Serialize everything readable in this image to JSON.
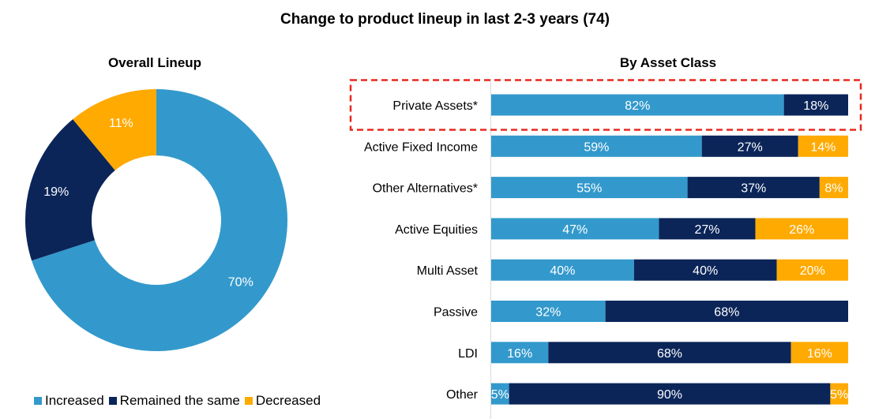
{
  "title": "Change to product lineup in last 2-3 years (74)",
  "colors": {
    "increased": "#3399CC",
    "same": "#0B2559",
    "decreased": "#FFAA00",
    "highlight": "#E8281E"
  },
  "chart_data": [
    {
      "type": "pie",
      "title": "Overall Lineup",
      "donut": true,
      "slices": [
        {
          "name": "Increased",
          "value": 70,
          "label": "70%"
        },
        {
          "name": "Remained the same",
          "value": 19,
          "label": "19%"
        },
        {
          "name": "Decreased",
          "value": 11,
          "label": "11%"
        }
      ],
      "legend": {
        "placement": "bottom-left",
        "entries": [
          "Increased",
          "Remained the same",
          "Decreased"
        ]
      }
    },
    {
      "type": "bar",
      "orientation": "horizontal",
      "stacked": true,
      "title": "By Asset Class",
      "categories": [
        "Private Assets*",
        "Active Fixed Income",
        "Other Alternatives*",
        "Active Equities",
        "Multi Asset",
        "Passive",
        "LDI",
        "Other"
      ],
      "series": [
        {
          "name": "Increased",
          "values": [
            82,
            59,
            55,
            47,
            40,
            32,
            16,
            5
          ]
        },
        {
          "name": "Remained the same",
          "values": [
            18,
            27,
            37,
            27,
            40,
            68,
            68,
            90
          ]
        },
        {
          "name": "Decreased",
          "values": [
            0,
            14,
            8,
            26,
            20,
            0,
            16,
            5
          ]
        }
      ],
      "xlim": [
        0,
        100
      ],
      "highlighted_category": "Private Assets*"
    }
  ]
}
